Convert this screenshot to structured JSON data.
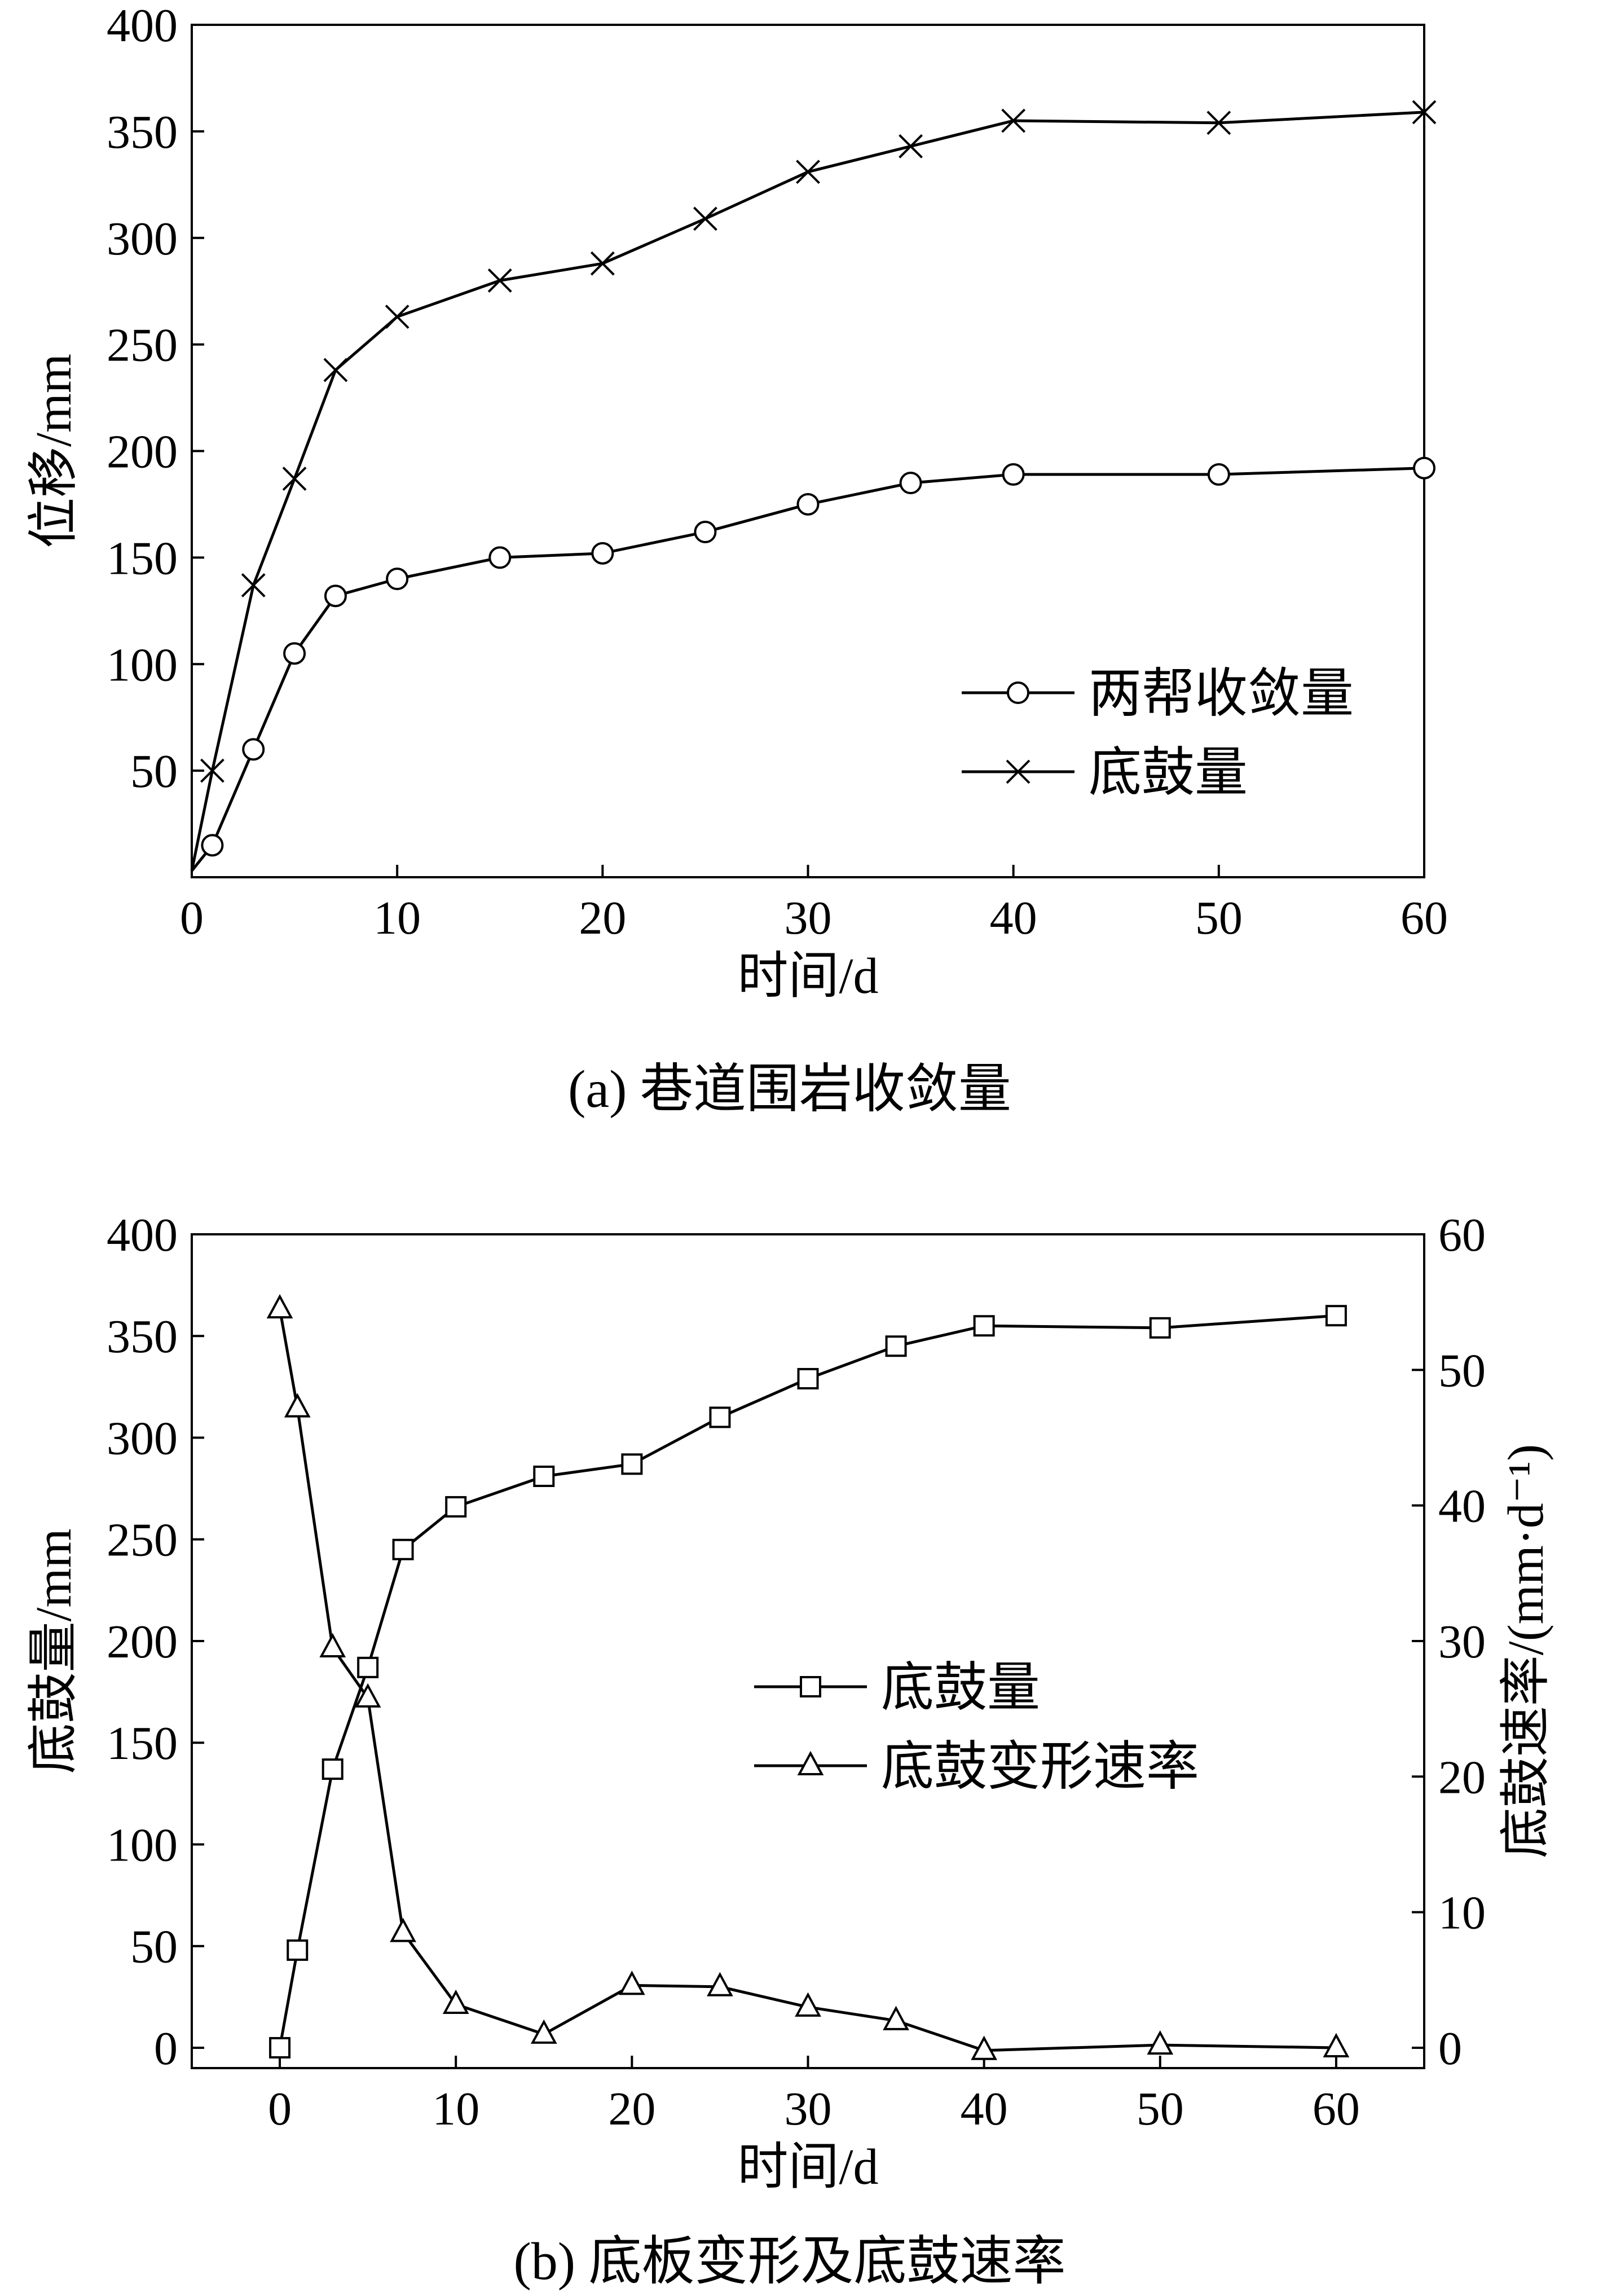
{
  "chart_data": [
    {
      "id": "a",
      "type": "line",
      "caption": "(a)  巷道围岩收敛量",
      "xlabel": "时间/d",
      "ylabel": "位移/mm",
      "xlim": [
        0,
        60
      ],
      "ylim": [
        0,
        400
      ],
      "xticks": [
        0,
        10,
        20,
        30,
        40,
        50,
        60
      ],
      "yticks": [
        50,
        100,
        150,
        200,
        250,
        300,
        350,
        400
      ],
      "legend_position": "lower-right",
      "series": [
        {
          "name": "两帮收敛量",
          "marker": "circle",
          "x": [
            0,
            1,
            3,
            5,
            7,
            10,
            15,
            20,
            25,
            30,
            35,
            40,
            50,
            60
          ],
          "y": [
            3,
            15,
            60,
            105,
            132,
            140,
            150,
            152,
            162,
            175,
            185,
            189,
            189,
            192
          ]
        },
        {
          "name": "底鼓量",
          "marker": "x",
          "x": [
            0,
            1,
            3,
            5,
            7,
            10,
            15,
            20,
            25,
            30,
            35,
            40,
            50,
            60
          ],
          "y": [
            3,
            50,
            137,
            187,
            238,
            263,
            280,
            288,
            309,
            331,
            343,
            355,
            354,
            359
          ]
        }
      ]
    },
    {
      "id": "b",
      "type": "line",
      "caption": "(b)  底板变形及底鼓速率",
      "xlabel": "时间/d",
      "ylabel": "底鼓量/mm",
      "ylabel_right": "底鼓速率/(mm·d⁻¹)",
      "xlim": [
        -5,
        65
      ],
      "ylim": [
        -10,
        400
      ],
      "ylim_right": [
        -1.5,
        60
      ],
      "xticks": [
        0,
        10,
        20,
        30,
        40,
        50,
        60
      ],
      "yticks": [
        0,
        50,
        100,
        150,
        200,
        250,
        300,
        350,
        400
      ],
      "yticks_right": [
        0,
        10,
        20,
        30,
        40,
        50,
        60
      ],
      "legend_position": "center-right",
      "series": [
        {
          "name": "底鼓量",
          "marker": "square",
          "axis": "left",
          "x": [
            0,
            1,
            3,
            5,
            7,
            10,
            15,
            20,
            25,
            30,
            35,
            40,
            50,
            60
          ],
          "y": [
            0,
            48,
            137,
            187,
            245,
            266,
            281,
            287,
            310,
            329,
            345,
            355,
            354,
            360
          ]
        },
        {
          "name": "底鼓变形速率",
          "marker": "triangle",
          "axis": "right",
          "x": [
            0,
            1,
            3,
            5,
            7,
            10,
            15,
            20,
            25,
            30,
            35,
            40,
            50,
            60
          ],
          "y": [
            54.5,
            47.2,
            29.5,
            25.8,
            8.5,
            3.2,
            1.0,
            4.6,
            4.5,
            3.0,
            2.0,
            -0.2,
            0.2,
            0.0
          ]
        }
      ]
    }
  ]
}
